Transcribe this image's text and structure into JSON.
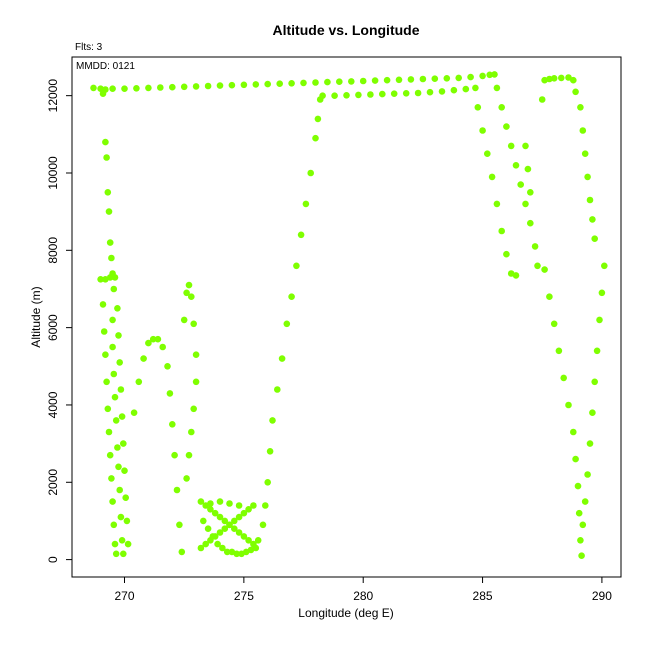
{
  "chart_data": {
    "type": "scatter",
    "title": "Altitude vs. Longitude",
    "xlabel": "Longitude (deg E)",
    "ylabel": "Altitude (m)",
    "annotations": [
      "Flts: 3",
      "MMDD: 0121"
    ],
    "xlim": [
      267.8,
      290.8
    ],
    "ylim": [
      -450,
      13000
    ],
    "x_ticks": [
      270,
      275,
      280,
      285,
      290
    ],
    "y_ticks": [
      0,
      2000,
      4000,
      6000,
      8000,
      10000,
      12000
    ],
    "grid": false,
    "marker_color": "#7fff00",
    "series": [
      {
        "points": [
          [
            268.7,
            12200
          ],
          [
            269.0,
            12180
          ],
          [
            269.2,
            12160
          ],
          [
            269.5,
            12180
          ],
          [
            270.0,
            12180
          ],
          [
            270.5,
            12190
          ],
          [
            271.0,
            12200
          ],
          [
            271.5,
            12210
          ],
          [
            272.0,
            12220
          ],
          [
            272.5,
            12230
          ],
          [
            273.0,
            12240
          ],
          [
            273.5,
            12250
          ],
          [
            274.0,
            12260
          ],
          [
            274.5,
            12270
          ],
          [
            275.0,
            12280
          ],
          [
            275.5,
            12290
          ],
          [
            276.0,
            12300
          ],
          [
            276.5,
            12310
          ],
          [
            277.0,
            12320
          ],
          [
            277.5,
            12330
          ],
          [
            278.0,
            12340
          ],
          [
            278.5,
            12350
          ],
          [
            279.0,
            12360
          ],
          [
            279.5,
            12370
          ],
          [
            280.0,
            12380
          ],
          [
            280.5,
            12390
          ],
          [
            281.0,
            12400
          ],
          [
            281.5,
            12410
          ],
          [
            282.0,
            12420
          ],
          [
            282.5,
            12430
          ],
          [
            283.0,
            12440
          ],
          [
            283.5,
            12450
          ],
          [
            284.0,
            12460
          ],
          [
            284.5,
            12480
          ],
          [
            285.0,
            12510
          ],
          [
            285.3,
            12540
          ],
          [
            285.5,
            12550
          ],
          [
            269.1,
            12050
          ],
          [
            269.2,
            10800
          ],
          [
            269.25,
            10400
          ],
          [
            269.3,
            9500
          ],
          [
            269.35,
            9000
          ],
          [
            269.4,
            8200
          ],
          [
            269.45,
            7800
          ],
          [
            269.5,
            7400
          ],
          [
            269.55,
            7000
          ],
          [
            269.5,
            6200
          ],
          [
            269.5,
            5500
          ],
          [
            269.55,
            4800
          ],
          [
            269.6,
            4200
          ],
          [
            269.65,
            3600
          ],
          [
            269.7,
            2900
          ],
          [
            269.75,
            2400
          ],
          [
            269.8,
            1800
          ],
          [
            269.85,
            1100
          ],
          [
            269.9,
            500
          ],
          [
            269.95,
            150
          ],
          [
            269.0,
            7250
          ],
          [
            269.2,
            7250
          ],
          [
            269.4,
            7300
          ],
          [
            269.6,
            7300
          ],
          [
            269.1,
            6600
          ],
          [
            269.15,
            5900
          ],
          [
            269.2,
            5300
          ],
          [
            269.25,
            4600
          ],
          [
            269.3,
            3900
          ],
          [
            269.35,
            3300
          ],
          [
            269.4,
            2700
          ],
          [
            269.45,
            2100
          ],
          [
            269.5,
            1500
          ],
          [
            269.55,
            900
          ],
          [
            269.6,
            400
          ],
          [
            269.65,
            150
          ],
          [
            269.7,
            6500
          ],
          [
            269.75,
            5800
          ],
          [
            269.8,
            5100
          ],
          [
            269.85,
            4400
          ],
          [
            269.9,
            3700
          ],
          [
            269.95,
            3000
          ],
          [
            270.0,
            2300
          ],
          [
            270.05,
            1600
          ],
          [
            270.1,
            1000
          ],
          [
            270.15,
            400
          ],
          [
            270.4,
            3800
          ],
          [
            270.6,
            4600
          ],
          [
            270.8,
            5200
          ],
          [
            271.0,
            5600
          ],
          [
            271.2,
            5700
          ],
          [
            271.4,
            5700
          ],
          [
            271.6,
            5500
          ],
          [
            271.8,
            5000
          ],
          [
            271.9,
            4300
          ],
          [
            272.0,
            3500
          ],
          [
            272.1,
            2700
          ],
          [
            272.2,
            1800
          ],
          [
            272.3,
            900
          ],
          [
            272.4,
            200
          ],
          [
            272.5,
            6200
          ],
          [
            272.6,
            6900
          ],
          [
            272.7,
            7100
          ],
          [
            272.8,
            6800
          ],
          [
            272.9,
            6100
          ],
          [
            273.0,
            5300
          ],
          [
            273.0,
            4600
          ],
          [
            272.9,
            3900
          ],
          [
            272.8,
            3300
          ],
          [
            272.7,
            2700
          ],
          [
            272.6,
            2100
          ],
          [
            273.2,
            1500
          ],
          [
            273.4,
            1400
          ],
          [
            273.6,
            1300
          ],
          [
            273.8,
            1200
          ],
          [
            274.0,
            1100
          ],
          [
            274.2,
            1000
          ],
          [
            274.4,
            900
          ],
          [
            274.6,
            800
          ],
          [
            274.8,
            700
          ],
          [
            275.0,
            600
          ],
          [
            275.2,
            500
          ],
          [
            275.4,
            400
          ],
          [
            273.2,
            300
          ],
          [
            273.4,
            400
          ],
          [
            273.6,
            500
          ],
          [
            273.8,
            600
          ],
          [
            274.0,
            700
          ],
          [
            274.2,
            800
          ],
          [
            274.4,
            900
          ],
          [
            274.6,
            1000
          ],
          [
            274.8,
            1100
          ],
          [
            275.0,
            1200
          ],
          [
            275.2,
            1300
          ],
          [
            275.4,
            1400
          ],
          [
            273.3,
            1000
          ],
          [
            273.5,
            800
          ],
          [
            273.7,
            600
          ],
          [
            273.9,
            400
          ],
          [
            274.1,
            300
          ],
          [
            274.3,
            200
          ],
          [
            274.5,
            200
          ],
          [
            274.7,
            150
          ],
          [
            274.9,
            150
          ],
          [
            275.1,
            200
          ],
          [
            275.3,
            250
          ],
          [
            275.5,
            300
          ],
          [
            273.6,
            1450
          ],
          [
            274.0,
            1500
          ],
          [
            274.4,
            1450
          ],
          [
            274.8,
            1400
          ],
          [
            275.6,
            500
          ],
          [
            275.8,
            900
          ],
          [
            275.9,
            1400
          ],
          [
            276.0,
            2000
          ],
          [
            276.1,
            2800
          ],
          [
            276.2,
            3600
          ],
          [
            276.4,
            4400
          ],
          [
            276.6,
            5200
          ],
          [
            276.8,
            6100
          ],
          [
            277.0,
            6800
          ],
          [
            277.2,
            7600
          ],
          [
            277.4,
            8400
          ],
          [
            277.6,
            9200
          ],
          [
            277.8,
            10000
          ],
          [
            278.0,
            10900
          ],
          [
            278.1,
            11400
          ],
          [
            278.2,
            11900
          ],
          [
            278.3,
            12000
          ],
          [
            278.8,
            12000
          ],
          [
            279.3,
            12010
          ],
          [
            279.8,
            12020
          ],
          [
            280.3,
            12030
          ],
          [
            280.8,
            12040
          ],
          [
            281.3,
            12050
          ],
          [
            281.8,
            12060
          ],
          [
            282.3,
            12070
          ],
          [
            282.8,
            12090
          ],
          [
            283.3,
            12110
          ],
          [
            283.8,
            12140
          ],
          [
            284.3,
            12170
          ],
          [
            284.7,
            12200
          ],
          [
            284.8,
            11700
          ],
          [
            285.0,
            11100
          ],
          [
            285.2,
            10500
          ],
          [
            285.4,
            9900
          ],
          [
            285.6,
            9200
          ],
          [
            285.8,
            8500
          ],
          [
            286.0,
            7900
          ],
          [
            286.2,
            7400
          ],
          [
            286.4,
            7350
          ],
          [
            285.6,
            12200
          ],
          [
            285.8,
            11700
          ],
          [
            286.0,
            11200
          ],
          [
            286.2,
            10700
          ],
          [
            286.4,
            10200
          ],
          [
            286.6,
            9700
          ],
          [
            286.8,
            9200
          ],
          [
            287.0,
            8700
          ],
          [
            287.2,
            8100
          ],
          [
            287.3,
            7600
          ],
          [
            286.8,
            10700
          ],
          [
            286.9,
            10100
          ],
          [
            287.0,
            9500
          ],
          [
            287.5,
            11900
          ],
          [
            287.6,
            12400
          ],
          [
            287.8,
            12430
          ],
          [
            288.0,
            12450
          ],
          [
            288.3,
            12460
          ],
          [
            288.6,
            12470
          ],
          [
            288.8,
            12400
          ],
          [
            288.9,
            12100
          ],
          [
            289.1,
            11700
          ],
          [
            289.2,
            11100
          ],
          [
            289.3,
            10500
          ],
          [
            289.4,
            9900
          ],
          [
            289.5,
            9300
          ],
          [
            289.6,
            8800
          ],
          [
            289.7,
            8300
          ],
          [
            287.6,
            7500
          ],
          [
            287.8,
            6800
          ],
          [
            288.0,
            6100
          ],
          [
            288.2,
            5400
          ],
          [
            288.4,
            4700
          ],
          [
            288.6,
            4000
          ],
          [
            288.8,
            3300
          ],
          [
            288.9,
            2600
          ],
          [
            289.0,
            1900
          ],
          [
            289.05,
            1200
          ],
          [
            289.1,
            500
          ],
          [
            289.15,
            100
          ],
          [
            289.2,
            900
          ],
          [
            289.3,
            1500
          ],
          [
            289.4,
            2200
          ],
          [
            289.5,
            3000
          ],
          [
            289.6,
            3800
          ],
          [
            289.7,
            4600
          ],
          [
            289.8,
            5400
          ],
          [
            289.9,
            6200
          ],
          [
            290.0,
            6900
          ],
          [
            290.1,
            7600
          ]
        ]
      }
    ]
  }
}
